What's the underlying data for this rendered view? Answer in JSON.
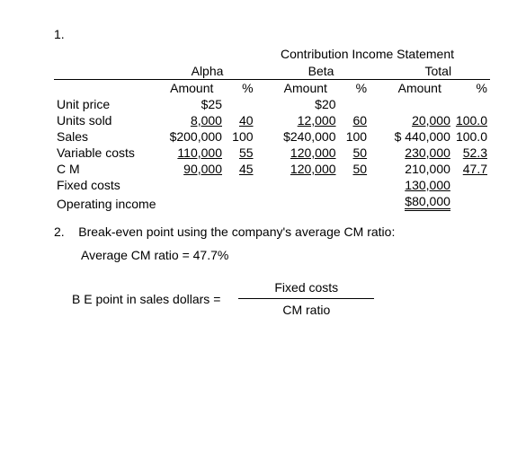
{
  "part1_num": "1.",
  "title": "Contribution Income Statement",
  "groups": {
    "a": "Alpha",
    "b": "Beta",
    "t": "Total"
  },
  "subhdr": {
    "amt": "Amount",
    "pct": "%"
  },
  "rows": {
    "unit_price": {
      "label": "Unit price",
      "a_amt": "$25",
      "a_pct": "",
      "b_amt": "$20",
      "b_pct": "",
      "t_amt": "",
      "t_pct": ""
    },
    "units_sold": {
      "label": "Units sold",
      "a_amt": "8,000",
      "a_pct": "40",
      "b_amt": "12,000",
      "b_pct": "60",
      "t_amt": "20,000",
      "t_pct": "100.0"
    },
    "sales": {
      "label": "Sales",
      "a_amt": "$200,000",
      "a_pct": "100",
      "b_amt": "$240,000",
      "b_pct": "100",
      "t_amt": "$ 440,000",
      "t_pct": "100.0"
    },
    "var_costs": {
      "label": "Variable costs",
      "a_amt": "110,000",
      "a_pct": "55",
      "b_amt": "120,000",
      "b_pct": "50",
      "t_amt": "230,000",
      "t_pct": "52.3"
    },
    "cm": {
      "label": "C M",
      "a_amt": "90,000",
      "a_pct": "45",
      "b_amt": "120,000",
      "b_pct": "50",
      "t_amt": "210,000",
      "t_pct": "47.7"
    },
    "fixed": {
      "label": "Fixed costs",
      "t_amt": "130,000"
    },
    "op_income": {
      "label": "Operating income",
      "t_amt": "$80,000"
    }
  },
  "part2_num": "2.",
  "part2_text": "Break-even point using the company's average CM ratio:",
  "avg_cm": "Average CM ratio = 47.7%",
  "be_label": "B E point in sales dollars =",
  "be_top": "Fixed costs",
  "be_bot": "CM ratio"
}
